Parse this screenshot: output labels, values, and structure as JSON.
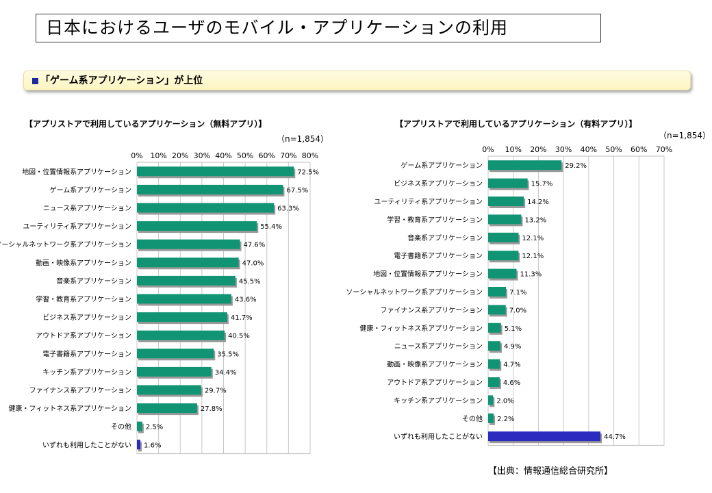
{
  "page": {
    "title": "日本におけるユーザのモバイル・アプリケーションの利用",
    "subtitle": "「ゲーム系アプリケーション」が上位",
    "source": "【出典：情報通信総合研究所】"
  },
  "colors": {
    "bar": "#119473",
    "bar_highlight": "#2b2bbf",
    "grid": "#c8c8c8",
    "subtitle_marker": "#1f2a9e"
  },
  "chart_data": [
    {
      "type": "bar",
      "orientation": "horizontal",
      "title": "【アプリストアで利用しているアプリケーション（無料アプリ）】",
      "note": "（n=1,854）",
      "xlim": [
        0,
        80
      ],
      "ticks": [
        "0%",
        "10%",
        "20%",
        "30%",
        "40%",
        "50%",
        "60%",
        "70%",
        "80%"
      ],
      "grid": true,
      "categories": [
        "地図・位置情報系アプリケーション",
        "ゲーム系アプリケーション",
        "ニュース系アプリケーション",
        "ユーティリティ系アプリケーション",
        "ソーシャルネットワーク系アプリケーション",
        "動画・映像系アプリケーション",
        "音楽系アプリケーション",
        "学習・教育系アプリケーション",
        "ビジネス系アプリケーション",
        "アウトドア系アプリケーション",
        "電子書籍系アプリケーション",
        "キッチン系アプリケーション",
        "ファイナンス系アプリケーション",
        "健康・フィットネス系アプリケーション",
        "その他",
        "いずれも利用したことがない"
      ],
      "values": [
        72.5,
        67.5,
        63.3,
        55.4,
        47.6,
        47.0,
        45.5,
        43.6,
        41.7,
        40.5,
        35.5,
        34.4,
        29.7,
        27.8,
        2.5,
        1.6
      ],
      "value_labels": [
        "72.5%",
        "67.5%",
        "63.3%",
        "55.4%",
        "47.6%",
        "47.0%",
        "45.5%",
        "43.6%",
        "41.7%",
        "40.5%",
        "35.5%",
        "34.4%",
        "29.7%",
        "27.8%",
        "2.5%",
        "1.6%"
      ],
      "highlight_index": 15
    },
    {
      "type": "bar",
      "orientation": "horizontal",
      "title": "【アプリストアで利用しているアプリケーション（有料アプリ）】",
      "note": "（n=1,854）",
      "xlim": [
        0,
        70
      ],
      "ticks": [
        "0%",
        "10%",
        "20%",
        "30%",
        "40%",
        "50%",
        "60%",
        "70%"
      ],
      "grid": true,
      "categories": [
        "ゲーム系アプリケーション",
        "ビジネス系アプリケーション",
        "ユーティリティ系アプリケーション",
        "学習・教育系アプリケーション",
        "音楽系アプリケーション",
        "電子書籍系アプリケーション",
        "地図・位置情報系アプリケーション",
        "ソーシャルネットワーク系アプリケーション",
        "ファイナンス系アプリケーション",
        "健康・フィットネス系アプリケーション",
        "ニュース系アプリケーション",
        "動画・映像系アプリケーション",
        "アウトドア系アプリケーション",
        "キッチン系アプリケーション",
        "その他",
        "いずれも利用したことがない"
      ],
      "values": [
        29.2,
        15.7,
        14.2,
        13.2,
        12.1,
        12.1,
        11.3,
        7.1,
        7.0,
        5.1,
        4.9,
        4.7,
        4.6,
        2.0,
        2.2,
        44.7
      ],
      "value_labels": [
        "29.2%",
        "15.7%",
        "14.2%",
        "13.2%",
        "12.1%",
        "12.1%",
        "11.3%",
        "7.1%",
        "7.0%",
        "5.1%",
        "4.9%",
        "4.7%",
        "4.6%",
        "2.0%",
        "2.2%",
        "44.7%"
      ],
      "highlight_index": 15
    }
  ]
}
